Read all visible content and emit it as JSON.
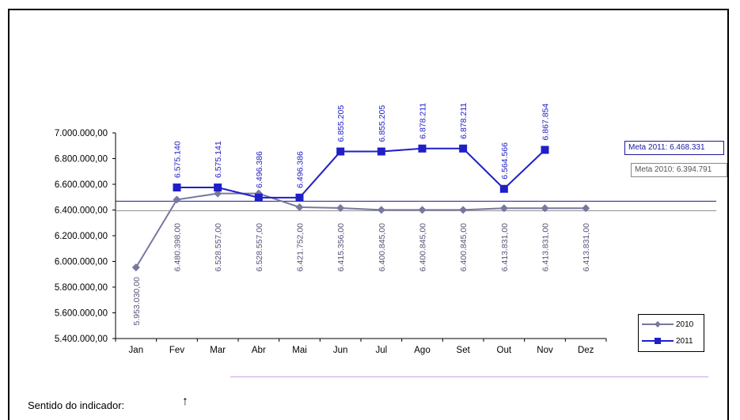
{
  "chart_data": {
    "type": "line",
    "categories": [
      "Jan",
      "Fev",
      "Mar",
      "Abr",
      "Mai",
      "Jun",
      "Jul",
      "Ago",
      "Set",
      "Out",
      "Nov",
      "Dez"
    ],
    "ylim": [
      5400000,
      7000000
    ],
    "yticks": [
      5400000,
      5600000,
      5800000,
      6000000,
      6200000,
      6400000,
      6600000,
      6800000,
      7000000
    ],
    "ytick_labels": [
      "5.400.000,00",
      "5.600.000,00",
      "5.800.000,00",
      "6.000.000,00",
      "6.200.000,00",
      "6.400.000,00",
      "6.600.000,00",
      "6.800.000,00",
      "7.000.000,00"
    ],
    "series": [
      {
        "name": "2010",
        "color": "#7777a0",
        "values": [
          5953030,
          6480398,
          6528557,
          6528557,
          6421752,
          6415356,
          6400845,
          6400845,
          6400845,
          6413831,
          6413831,
          6413831
        ],
        "labels": [
          "5.953.030,00",
          "6.480.398,00",
          "6.528.557,00",
          "6.528.557,00",
          "6.421.752,00",
          "6.415.356,00",
          "6.400.845,00",
          "6.400.845,00",
          "6.400.845,00",
          "6.413.831,00",
          "6.413.831,00",
          "6.413.831,00"
        ]
      },
      {
        "name": "2011",
        "color": "#1f1fc8",
        "values": [
          null,
          6575140,
          6575141,
          6496386,
          6496386,
          6855205,
          6855205,
          6878211,
          6878211,
          6564566,
          6867854,
          null
        ],
        "labels": [
          "",
          "6.575.140",
          "6.575.141",
          "6.496.386",
          "6.496.386",
          "6.855.205",
          "6.855.205",
          "6.878.211",
          "6.878.211",
          "6.564.566",
          "6.867.854",
          ""
        ]
      }
    ],
    "goal_lines": [
      {
        "label": "Meta 2011: 6.468.331",
        "value": 6468331,
        "color": "#1a1a9a"
      },
      {
        "label": "Meta 2010: 6.394.791",
        "value": 6394791,
        "color": "#888888"
      }
    ],
    "legend_position": "bottom-right"
  },
  "footer": {
    "sentido_label": "Sentido do indicador:",
    "arrow": "↑"
  }
}
